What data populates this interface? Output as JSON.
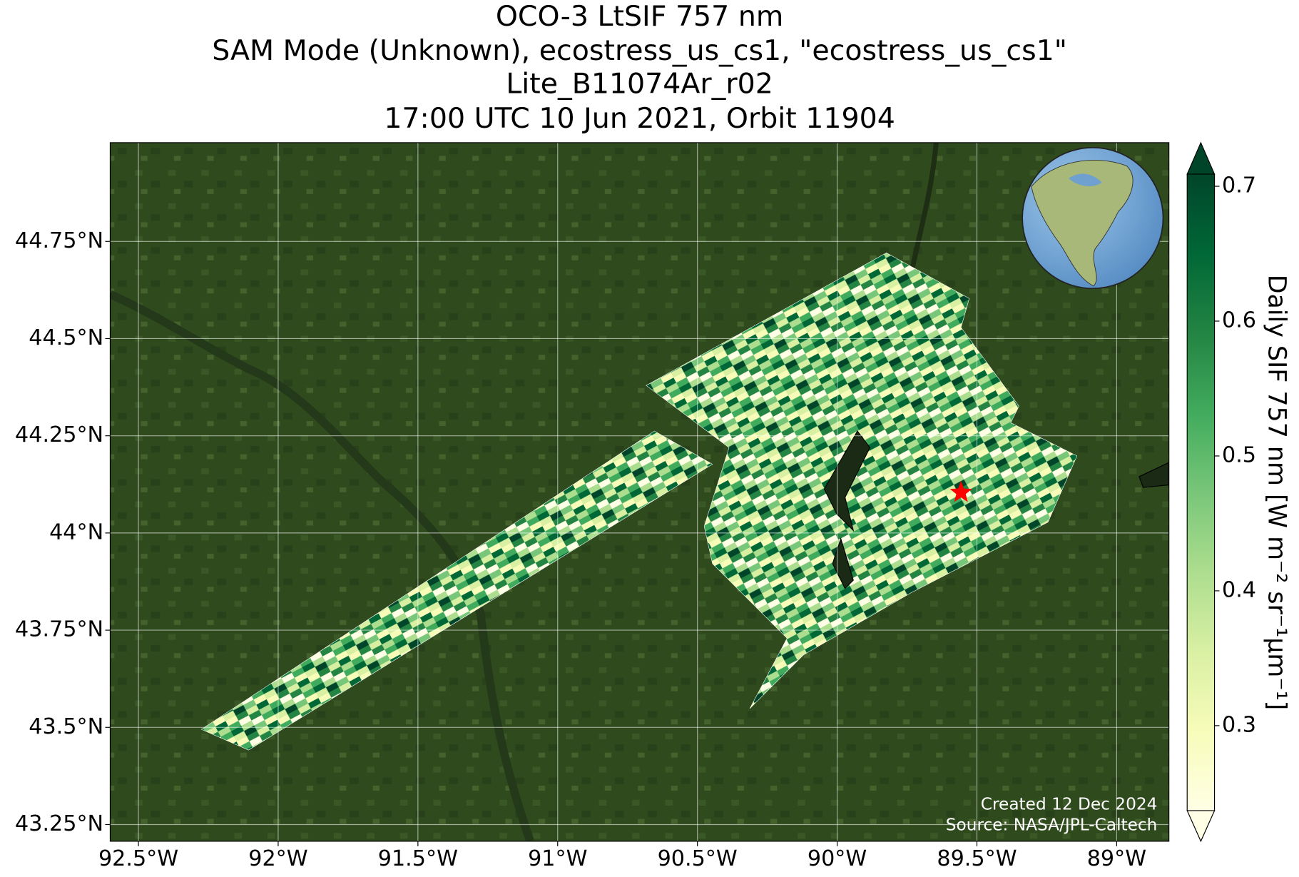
{
  "chart_data": {
    "type": "map",
    "title": [
      "OCO-3 LtSIF 757 nm",
      "SAM Mode (Unknown), ecostress_us_cs1, \"ecostress_us_cs1\"",
      "Lite_B11074Ar_r02",
      "17:00 UTC 10 Jun 2021, Orbit 11904"
    ],
    "xlim": [
      -92.601,
      -88.813
    ],
    "ylim": [
      43.207,
      45.004
    ],
    "xticks": [
      {
        "value": -92.5,
        "label": "92.5°W"
      },
      {
        "value": -92,
        "label": "92°W"
      },
      {
        "value": -91.5,
        "label": "91.5°W"
      },
      {
        "value": -91,
        "label": "91°W"
      },
      {
        "value": -90.5,
        "label": "90.5°W"
      },
      {
        "value": -90,
        "label": "90°W"
      },
      {
        "value": -89.5,
        "label": "89.5°W"
      },
      {
        "value": -89,
        "label": "89°W"
      }
    ],
    "yticks": [
      {
        "value": 43.25,
        "label": "43.25°N"
      },
      {
        "value": 43.5,
        "label": "43.5°N"
      },
      {
        "value": 43.75,
        "label": "43.75°N"
      },
      {
        "value": 44,
        "label": "44°N"
      },
      {
        "value": 44.25,
        "label": "44.25°N"
      },
      {
        "value": 44.5,
        "label": "44.5°N"
      },
      {
        "value": 44.75,
        "label": "44.75°N"
      }
    ],
    "grid": true,
    "site": {
      "lon": -89.557,
      "lat": 44.104,
      "color": "#ff0000"
    },
    "colorbar": {
      "label": "Daily SIF 757 nm [W m⁻² sr⁻¹μm⁻¹]",
      "lim": [
        0.237,
        0.709
      ],
      "ticks": [
        0.3,
        0.4,
        0.5,
        0.6,
        0.7
      ],
      "colormap": [
        "#ffffe5",
        "#f7fcb9",
        "#d9f0a3",
        "#addd8e",
        "#78c679",
        "#41ab5d",
        "#238443",
        "#006837",
        "#004529"
      ]
    },
    "credits": [
      "Created 12 Dec 2024",
      "Source: NASA/JPL-Caltech"
    ]
  }
}
